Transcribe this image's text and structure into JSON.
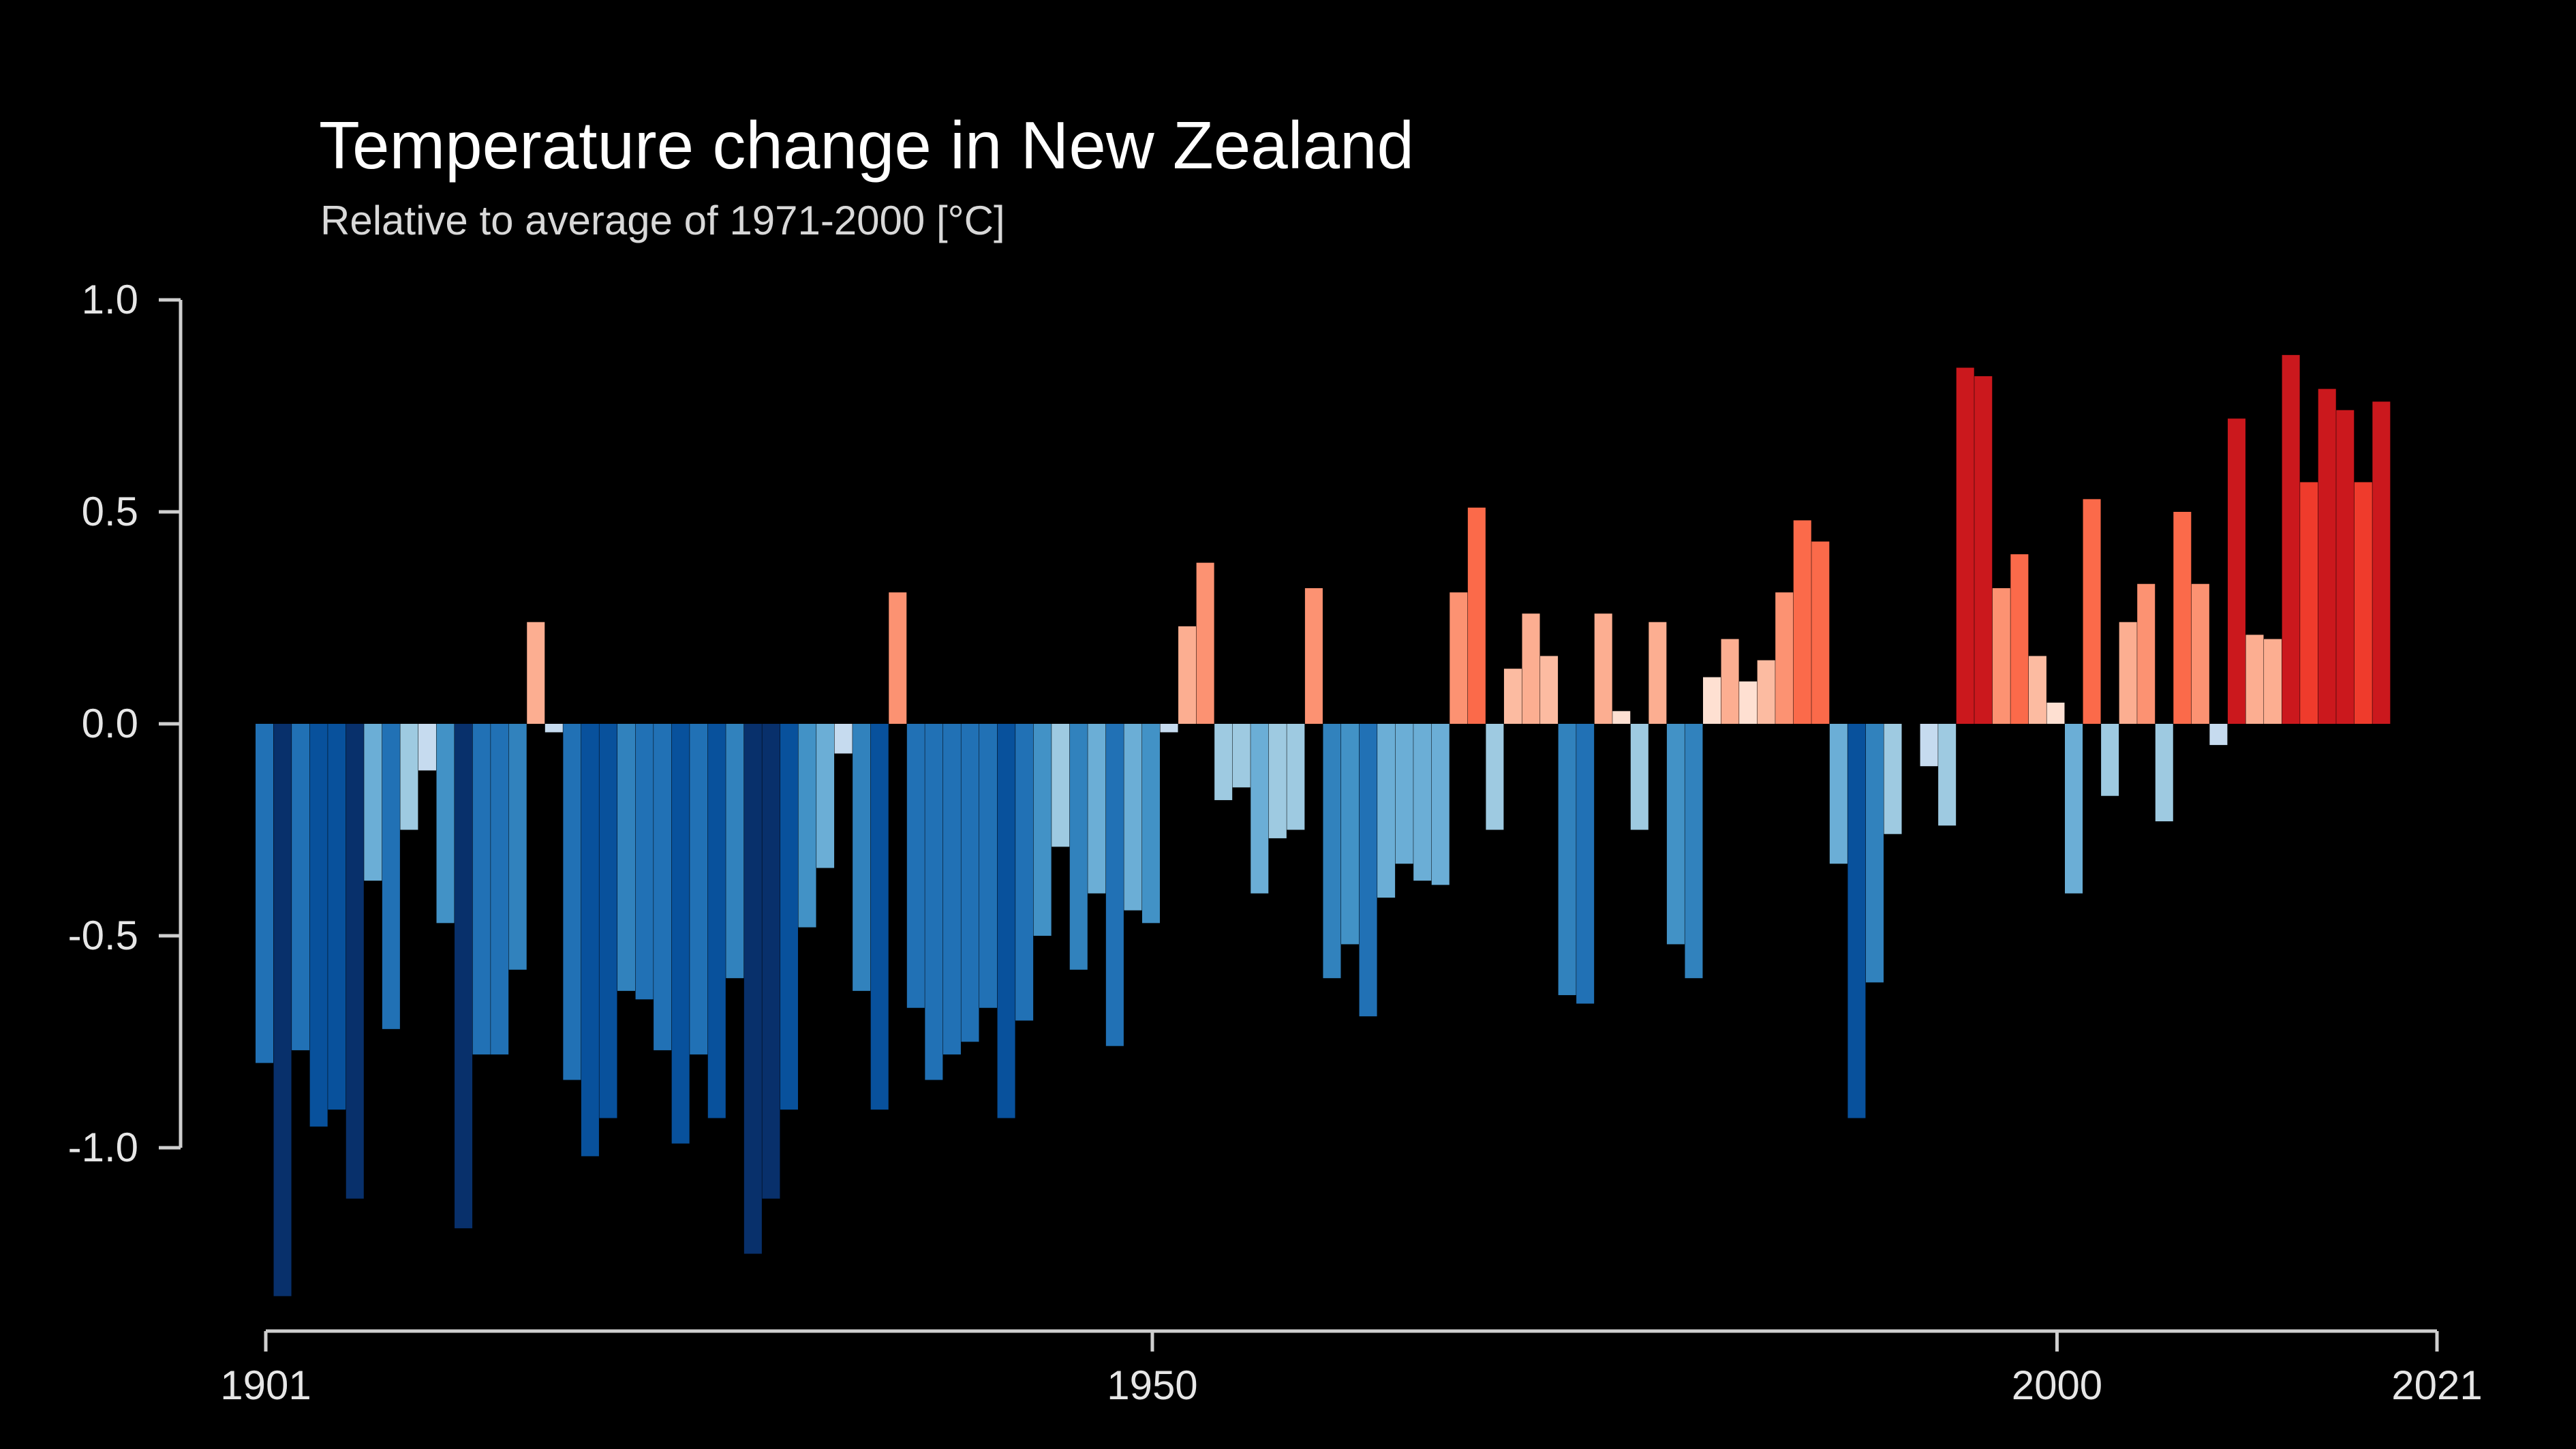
{
  "chart_data": {
    "type": "bar",
    "title": "Temperature change in New Zealand",
    "subtitle": "Relative to average of 1971-2000  [°C]",
    "xlabel": "",
    "ylabel": "",
    "x_start": 1901,
    "x_end": 2021,
    "xlim": [
      1901,
      2021
    ],
    "ylim": [
      -1.3,
      1.0
    ],
    "yticks": [
      1.0,
      0.5,
      0.0,
      -0.5,
      -1.0
    ],
    "ytick_labels": [
      "1.0",
      "0.5",
      "0.0",
      "-0.5",
      "-1.0"
    ],
    "xticks": [
      1901,
      1950,
      2000,
      2021
    ],
    "xtick_labels": [
      "1901",
      "1950",
      "2000",
      "2021"
    ],
    "grid": false,
    "legend": false,
    "colors": {
      "background": "#000000",
      "axis": "#cfcfcf",
      "cold_extreme": "#08306b",
      "cold": "#2171b5",
      "cool": "#6baed6",
      "neutral_cold": "#deebf7",
      "neutral_warm": "#fee0d2",
      "warm": "#fc9272",
      "hot": "#ef3b2c",
      "hot_extreme": "#cb181d"
    },
    "years": [
      1901,
      1902,
      1903,
      1904,
      1905,
      1906,
      1907,
      1908,
      1909,
      1910,
      1911,
      1912,
      1913,
      1914,
      1915,
      1916,
      1917,
      1918,
      1919,
      1920,
      1921,
      1922,
      1923,
      1924,
      1925,
      1926,
      1927,
      1928,
      1929,
      1930,
      1931,
      1932,
      1933,
      1934,
      1935,
      1936,
      1937,
      1938,
      1939,
      1940,
      1941,
      1942,
      1943,
      1944,
      1945,
      1946,
      1947,
      1948,
      1949,
      1950,
      1951,
      1952,
      1953,
      1954,
      1955,
      1956,
      1957,
      1958,
      1959,
      1960,
      1961,
      1962,
      1963,
      1964,
      1965,
      1966,
      1967,
      1968,
      1969,
      1970,
      1971,
      1972,
      1973,
      1974,
      1975,
      1976,
      1977,
      1978,
      1979,
      1980,
      1981,
      1982,
      1983,
      1984,
      1985,
      1986,
      1987,
      1988,
      1989,
      1990,
      1991,
      1992,
      1993,
      1994,
      1995,
      1996,
      1997,
      1998,
      1999,
      2000,
      2001,
      2002,
      2003,
      2004,
      2005,
      2006,
      2007,
      2008,
      2009,
      2010,
      2011,
      2012,
      2013,
      2014,
      2015,
      2016,
      2017,
      2018,
      2019,
      2020,
      2021
    ],
    "values": [
      -0.8,
      -1.35,
      -0.77,
      -0.95,
      -0.91,
      -1.12,
      -0.37,
      -0.72,
      -0.25,
      -0.11,
      -0.47,
      -1.19,
      -0.78,
      -0.78,
      -0.58,
      0.24,
      -0.02,
      -0.84,
      -1.02,
      -0.93,
      -0.63,
      -0.65,
      -0.77,
      -0.99,
      -0.78,
      -0.93,
      -0.6,
      -1.25,
      -1.12,
      -0.91,
      -0.48,
      -0.34,
      -0.07,
      -0.63,
      -0.91,
      0.31,
      -0.67,
      -0.84,
      -0.78,
      -0.75,
      -0.67,
      -0.93,
      -0.7,
      -0.5,
      -0.29,
      -0.58,
      -0.4,
      -0.76,
      -0.44,
      -0.47,
      -0.02,
      0.23,
      0.38,
      -0.18,
      -0.15,
      -0.4,
      -0.27,
      -0.25,
      0.32,
      -0.6,
      -0.52,
      -0.69,
      -0.41,
      -0.33,
      -0.37,
      -0.38,
      0.31,
      0.51,
      -0.25,
      0.13,
      0.26,
      0.16,
      -0.64,
      -0.66,
      0.26,
      0.03,
      -0.25,
      0.24,
      -0.52,
      -0.6,
      0.11,
      0.2,
      0.1,
      0.15,
      0.31,
      0.48,
      0.43,
      -0.33,
      -0.93,
      -0.61,
      -0.26,
      -0.0,
      -0.1,
      -0.24,
      0.84,
      0.82,
      0.32,
      0.4,
      0.16,
      0.05,
      -0.4,
      0.53,
      -0.17,
      0.24,
      0.33,
      -0.23,
      0.5,
      0.33,
      -0.05,
      0.72,
      0.21,
      0.2,
      0.87,
      0.57,
      0.79,
      0.74,
      0.57,
      0.76,
      0.0,
      0.0,
      0.0
    ]
  }
}
